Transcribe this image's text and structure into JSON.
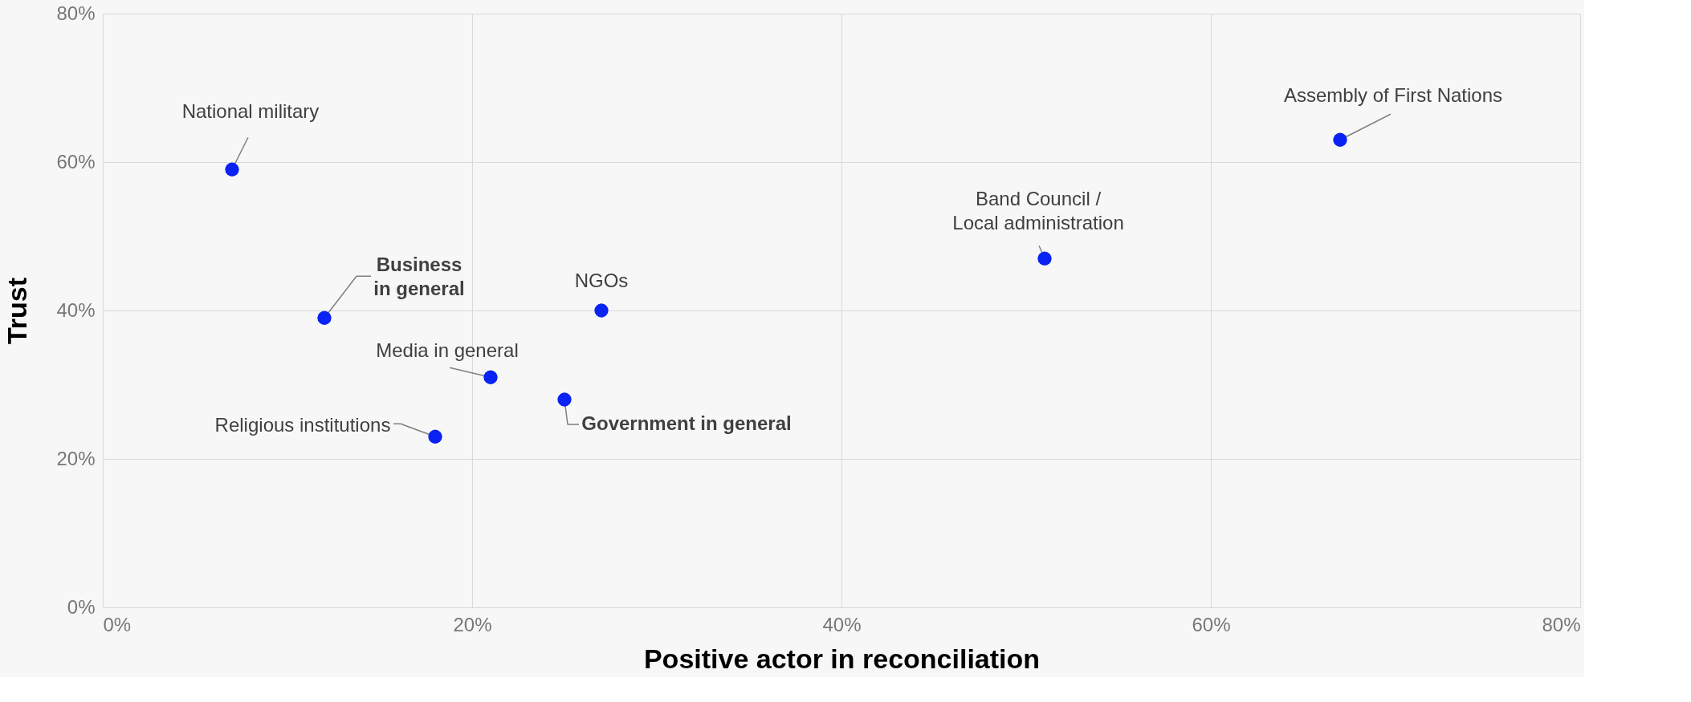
{
  "chart_data": {
    "type": "scatter",
    "xlabel": "Positive actor in reconciliation",
    "ylabel": "Trust",
    "x": [
      7,
      12,
      21,
      18,
      25,
      27,
      51,
      67
    ],
    "series": [
      {
        "color": "#0a22f2",
        "values": [
          59,
          39,
          31,
          23,
          28,
          40,
          47,
          63
        ]
      }
    ],
    "xlim": [
      0,
      80
    ],
    "ylim": [
      0,
      80
    ],
    "xticks": [
      {
        "value": 0,
        "label": "0%"
      },
      {
        "value": 20,
        "label": "20%"
      },
      {
        "value": 40,
        "label": "40%"
      },
      {
        "value": 60,
        "label": "60%"
      },
      {
        "value": 80,
        "label": "80%"
      }
    ],
    "yticks": [
      {
        "value": 0,
        "label": "0%"
      },
      {
        "value": 20,
        "label": "20%"
      },
      {
        "value": 40,
        "label": "40%"
      },
      {
        "value": 60,
        "label": "60%"
      },
      {
        "value": 80,
        "label": "80%"
      }
    ],
    "grid": true,
    "marker": "circle",
    "annotations": [
      {
        "text": "National military",
        "x": 7,
        "y": 59
      },
      {
        "text": "Business\nin general",
        "x": 12,
        "y": 39
      },
      {
        "text": "Media in general",
        "x": 21,
        "y": 31
      },
      {
        "text": "Religious institutions",
        "x": 18,
        "y": 23
      },
      {
        "text": "Government in general",
        "x": 25,
        "y": 28
      },
      {
        "text": "NGOs",
        "x": 27,
        "y": 40
      },
      {
        "text": "Band Council /\nLocal administration",
        "x": 51,
        "y": 47
      },
      {
        "text": "Assembly of First Nations",
        "x": 67,
        "y": 63
      }
    ]
  }
}
